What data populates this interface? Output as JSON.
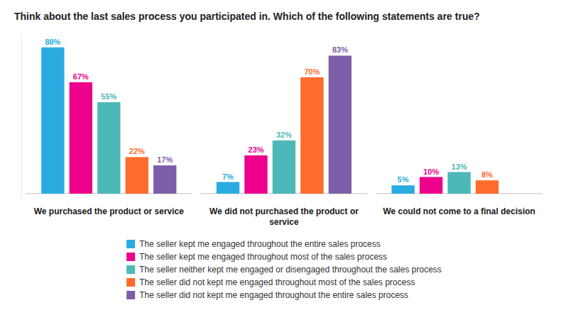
{
  "chart_data": {
    "type": "bar",
    "title": "Think about the last sales process you participated in. Which of the following statements are true?",
    "categories": [
      "We purchased the product or service",
      "We did not purchased the product or\nservice",
      "We could not come to a final decision"
    ],
    "series": [
      {
        "name": "The seller kept me engaged throughout the entire sales process",
        "color": "#29ABE2",
        "values": [
          88,
          7,
          5
        ],
        "value_labels": [
          "88%",
          "7%",
          "5%"
        ]
      },
      {
        "name": "The seller kept me engaged throughout most of the sales process",
        "color": "#EC008C",
        "values": [
          67,
          23,
          10
        ],
        "value_labels": [
          "67%",
          "23%",
          "10%"
        ]
      },
      {
        "name": "The seller neither kept me engaged or disengaged throughout the sales process",
        "color": "#4DB8B8",
        "values": [
          55,
          32,
          13
        ],
        "value_labels": [
          "55%",
          "32%",
          "13%"
        ]
      },
      {
        "name": "The seller did not kept me engaged throughout most of the sales process",
        "color": "#FF6B2B",
        "values": [
          22,
          70,
          8
        ],
        "value_labels": [
          "22%",
          "70%",
          "8%"
        ]
      },
      {
        "name": "The seller did not kept me engaged throughout the entire sales process",
        "color": "#7B5EA7",
        "values": [
          17,
          83,
          0
        ],
        "value_labels": [
          "17%",
          "83%",
          null
        ]
      }
    ],
    "ylim": [
      -3,
      96
    ],
    "grid": false,
    "legend": "bottom",
    "data_labels": true,
    "tick_labels": false
  }
}
